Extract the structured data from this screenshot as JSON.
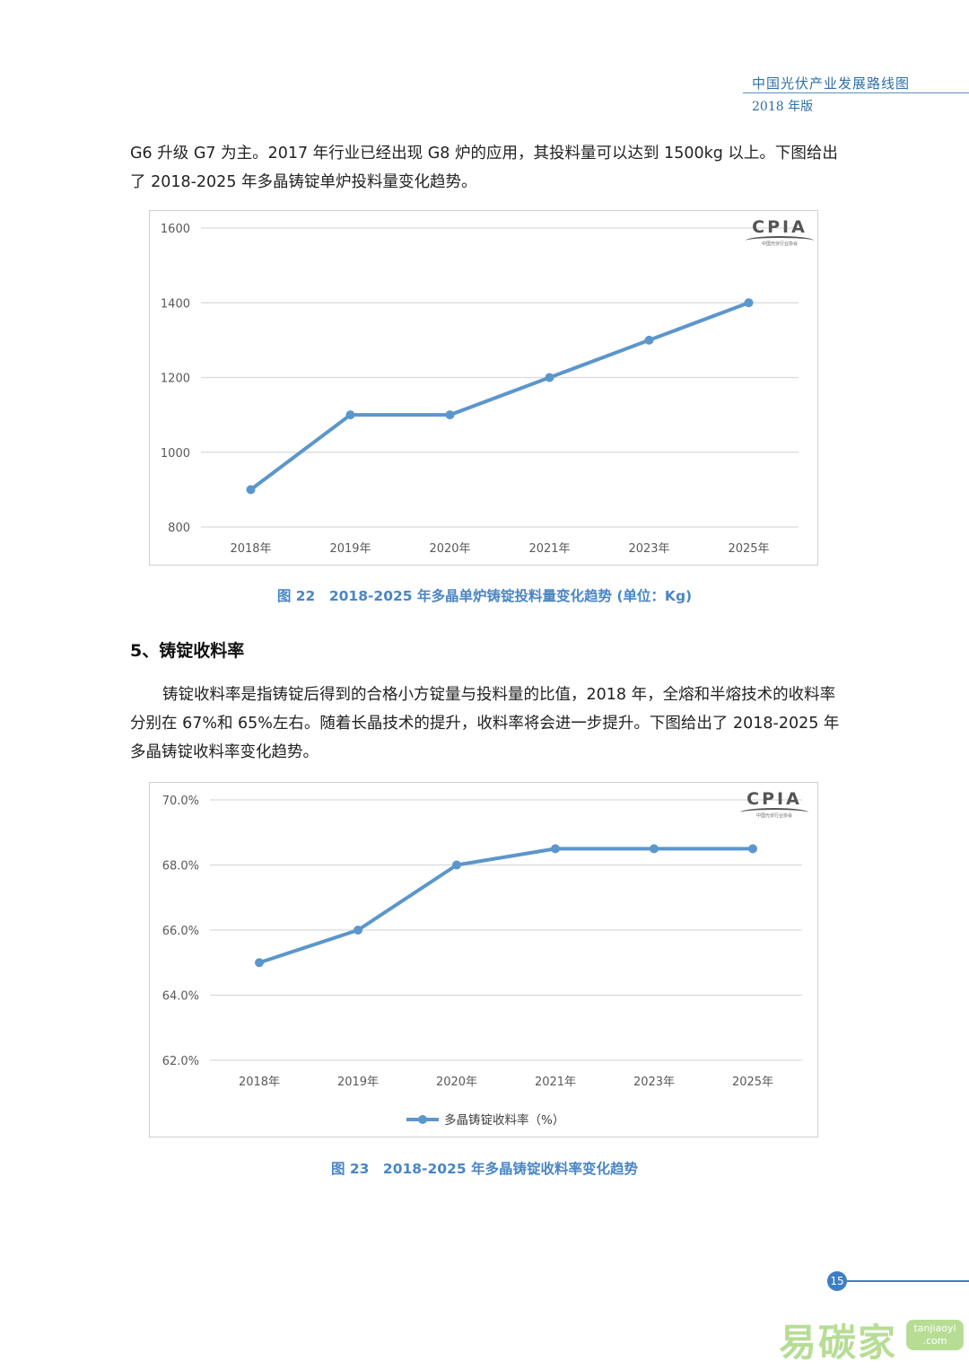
{
  "header": {
    "title": "中国光伏产业发展路线图",
    "subtitle": "2018 年版"
  },
  "paragraphs": {
    "p1": "G6 升级 G7 为主。2017 年行业已经出现 G8 炉的应用，其投料量可以达到 1500kg 以上。下图给出了 2018-2025 年多晶铸锭单炉投料量变化趋势。",
    "section_heading": "5、铸锭收料率",
    "p2": "铸锭收料率是指铸锭后得到的合格小方锭量与投料量的比值，2018 年，全熔和半熔技术的收料率分别在 67%和 65%左右。随着长晶技术的提升，收料率将会进一步提升。下图给出了 2018-2025 年多晶铸锭收料率变化趋势。"
  },
  "logo": {
    "text": "CPIA",
    "subtext": "中国光伏行业协会"
  },
  "chart_data": [
    {
      "type": "line",
      "title": "图 22　2018-2025 年多晶单炉铸锭投料量变化趋势 (单位：Kg)",
      "categories": [
        "2018年",
        "2019年",
        "2020年",
        "2021年",
        "2023年",
        "2025年"
      ],
      "series": [
        {
          "values": [
            900,
            1100,
            1100,
            1200,
            1300,
            1400
          ]
        }
      ],
      "ylim": [
        800,
        1600
      ],
      "yticks": [
        "800",
        "1000",
        "1200",
        "1400",
        "1600"
      ],
      "color": "#5b96cc",
      "grid": true,
      "legend": "none"
    },
    {
      "type": "line",
      "title": "图 23　2018-2025 年多晶铸锭收料率变化趋势",
      "categories": [
        "2018年",
        "2019年",
        "2020年",
        "2021年",
        "2023年",
        "2025年"
      ],
      "series": [
        {
          "name": "多晶铸锭收料率（%）",
          "values": [
            65.0,
            66.0,
            68.0,
            68.5,
            68.5,
            68.5
          ]
        }
      ],
      "ylim": [
        62,
        70
      ],
      "yticks": [
        "62.0%",
        "64.0%",
        "66.0%",
        "68.0%",
        "70.0%"
      ],
      "color": "#5b96cc",
      "grid": true,
      "legend": "bottom"
    }
  ],
  "footer": {
    "page_number": "15",
    "watermark_cn": "易碳家",
    "watermark_en_1": "tanjiaoyi",
    "watermark_en_2": ".com"
  }
}
